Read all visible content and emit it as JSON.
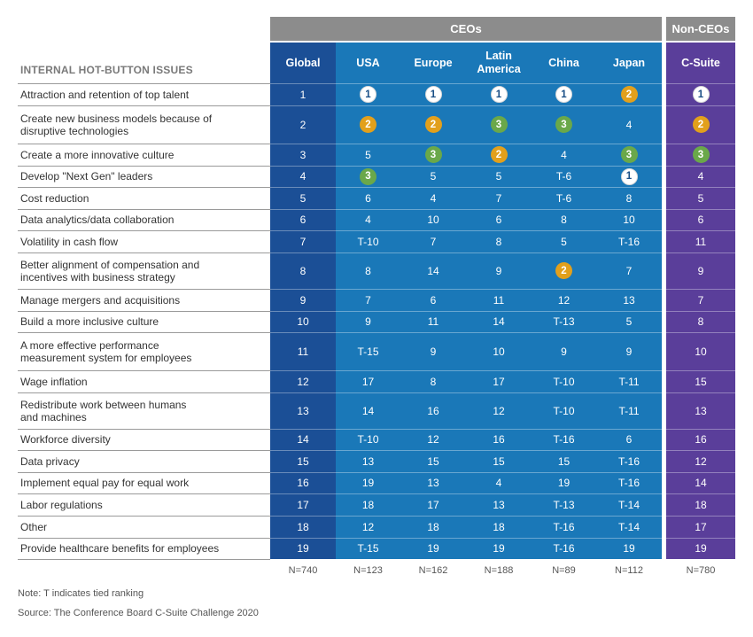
{
  "group_headers": {
    "ceos": "CEOs",
    "non_ceos": "Non-CEOs"
  },
  "issues_header": "INTERNAL HOT-BUTTON ISSUES",
  "colors": {
    "global": "#1b4f96",
    "ceo_columns": "#1a78b8",
    "non_ceo": "#5a3e9a",
    "group_header": "#8c8c8c",
    "rank1_badge": "#ffffff",
    "rank2_badge": "#e2a01c",
    "rank3_badge": "#6aa84a"
  },
  "chart_data": {
    "type": "table",
    "columns": [
      "Global",
      "USA",
      "Europe",
      "Latin\nAmerica",
      "China",
      "Japan",
      "C-Suite"
    ],
    "rows": [
      {
        "issue": "Attraction and retention of top talent",
        "values": [
          "1",
          "1",
          "1",
          "1",
          "1",
          "2",
          "1"
        ]
      },
      {
        "issue": "Create new business models because of\ndisruptive technologies",
        "values": [
          "2",
          "2",
          "2",
          "3",
          "3",
          "4",
          "2"
        ]
      },
      {
        "issue": "Create a more innovative culture",
        "values": [
          "3",
          "5",
          "3",
          "2",
          "4",
          "3",
          "3"
        ]
      },
      {
        "issue": "Develop \"Next Gen\" leaders",
        "values": [
          "4",
          "3",
          "5",
          "5",
          "T-6",
          "1",
          "4"
        ]
      },
      {
        "issue": "Cost reduction",
        "values": [
          "5",
          "6",
          "4",
          "7",
          "T-6",
          "8",
          "5"
        ]
      },
      {
        "issue": "Data analytics/data collaboration",
        "values": [
          "6",
          "4",
          "10",
          "6",
          "8",
          "10",
          "6"
        ]
      },
      {
        "issue": "Volatility in cash flow",
        "values": [
          "7",
          "T-10",
          "7",
          "8",
          "5",
          "T-16",
          "11"
        ]
      },
      {
        "issue": "Better alignment of compensation and\nincentives with business strategy",
        "values": [
          "8",
          "8",
          "14",
          "9",
          "2",
          "7",
          "9"
        ]
      },
      {
        "issue": "Manage mergers and acquisitions",
        "values": [
          "9",
          "7",
          "6",
          "11",
          "12",
          "13",
          "7"
        ]
      },
      {
        "issue": "Build a more inclusive culture",
        "values": [
          "10",
          "9",
          "11",
          "14",
          "T-13",
          "5",
          "8"
        ]
      },
      {
        "issue": "A more effective performance\nmeasurement system for employees",
        "values": [
          "11",
          "T-15",
          "9",
          "10",
          "9",
          "9",
          "10"
        ]
      },
      {
        "issue": "Wage inflation",
        "values": [
          "12",
          "17",
          "8",
          "17",
          "T-10",
          "T-11",
          "15"
        ]
      },
      {
        "issue": "Redistribute work between humans\nand machines",
        "values": [
          "13",
          "14",
          "16",
          "12",
          "T-10",
          "T-11",
          "13"
        ]
      },
      {
        "issue": "Workforce diversity",
        "values": [
          "14",
          "T-10",
          "12",
          "16",
          "T-16",
          "6",
          "16"
        ]
      },
      {
        "issue": "Data privacy",
        "values": [
          "15",
          "13",
          "15",
          "15",
          "15",
          "T-16",
          "12"
        ]
      },
      {
        "issue": "Implement equal pay for equal work",
        "values": [
          "16",
          "19",
          "13",
          "4",
          "19",
          "T-16",
          "14"
        ]
      },
      {
        "issue": "Labor regulations",
        "values": [
          "17",
          "18",
          "17",
          "13",
          "T-13",
          "T-14",
          "18"
        ]
      },
      {
        "issue": "Other",
        "values": [
          "18",
          "12",
          "18",
          "18",
          "T-16",
          "T-14",
          "17"
        ]
      },
      {
        "issue": "Provide healthcare benefits for employees",
        "values": [
          "19",
          "T-15",
          "19",
          "19",
          "T-16",
          "19",
          "19"
        ]
      }
    ],
    "sample_sizes": [
      "N=740",
      "N=123",
      "N=162",
      "N=188",
      "N=89",
      "N=112",
      "N=780"
    ]
  },
  "note": "Note: T indicates tied ranking",
  "source": "Source:  The Conference Board C-Suite Challenge 2020"
}
